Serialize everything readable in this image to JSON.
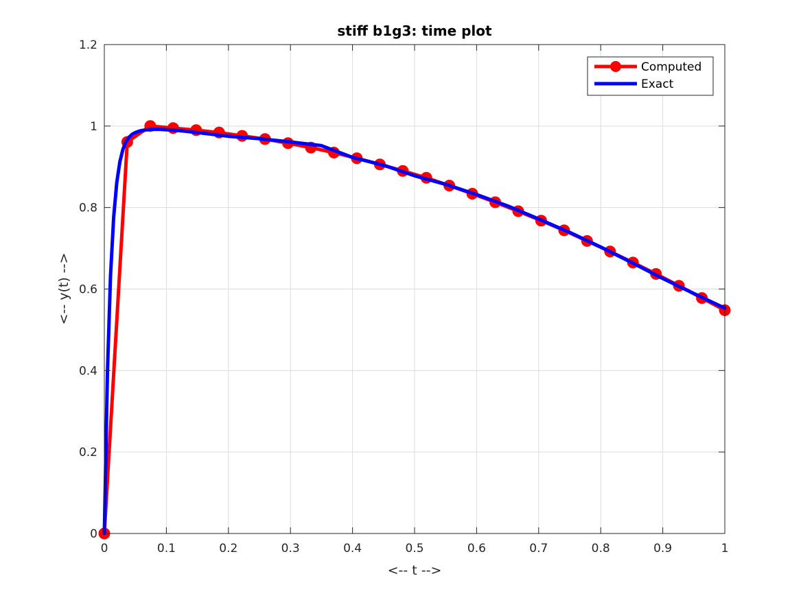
{
  "chart_data": {
    "type": "line",
    "title": "stiff b1g3: time plot",
    "xlabel": "<-- t -->",
    "ylabel": "<-- y(t) -->",
    "xlim": [
      0,
      1
    ],
    "ylim": [
      0,
      1.2
    ],
    "xticks": [
      "0",
      "0.1",
      "0.2",
      "0.3",
      "0.4",
      "0.5",
      "0.6",
      "0.7",
      "0.8",
      "0.9",
      "1"
    ],
    "yticks": [
      "0",
      "0.2",
      "0.4",
      "0.6",
      "0.8",
      "1",
      "1.2"
    ],
    "grid": true,
    "legend_position": "top-right",
    "series": [
      {
        "name": "Computed",
        "color": "#ff0000",
        "marker": "circle",
        "x": [
          0,
          0.037,
          0.074,
          0.111,
          0.148,
          0.185,
          0.222,
          0.259,
          0.296,
          0.333,
          0.37,
          0.407,
          0.444,
          0.481,
          0.519,
          0.556,
          0.593,
          0.63,
          0.667,
          0.704,
          0.741,
          0.778,
          0.815,
          0.852,
          0.889,
          0.926,
          0.963,
          1.0
        ],
        "y": [
          0,
          0.961,
          1.0,
          0.995,
          0.99,
          0.984,
          0.976,
          0.968,
          0.958,
          0.947,
          0.935,
          0.921,
          0.906,
          0.89,
          0.873,
          0.854,
          0.834,
          0.813,
          0.791,
          0.768,
          0.744,
          0.718,
          0.692,
          0.665,
          0.637,
          0.608,
          0.578,
          0.548
        ]
      },
      {
        "name": "Exact",
        "color": "#0000ff",
        "x": [
          0,
          0.005,
          0.01,
          0.015,
          0.02,
          0.025,
          0.03,
          0.035,
          0.04,
          0.045,
          0.05,
          0.055,
          0.06,
          0.065,
          0.07,
          0.075,
          0.08,
          0.085,
          0.09,
          0.1,
          0.11,
          0.12,
          0.15,
          0.2,
          0.25,
          0.3,
          0.35,
          0.4,
          0.45,
          0.5,
          0.55,
          0.6,
          0.65,
          0.7,
          0.75,
          0.8,
          0.85,
          0.9,
          0.95,
          1.0
        ],
        "y": [
          0,
          0.393,
          0.632,
          0.776,
          0.861,
          0.912,
          0.943,
          0.962,
          0.973,
          0.98,
          0.984,
          0.987,
          0.989,
          0.99,
          0.991,
          0.992,
          0.992,
          0.992,
          0.992,
          0.991,
          0.99,
          0.989,
          0.984,
          0.975,
          0.969,
          0.961,
          0.952,
          0.923,
          0.904,
          0.878,
          0.857,
          0.832,
          0.804,
          0.772,
          0.739,
          0.703,
          0.665,
          0.626,
          0.589,
          0.553
        ]
      }
    ]
  }
}
